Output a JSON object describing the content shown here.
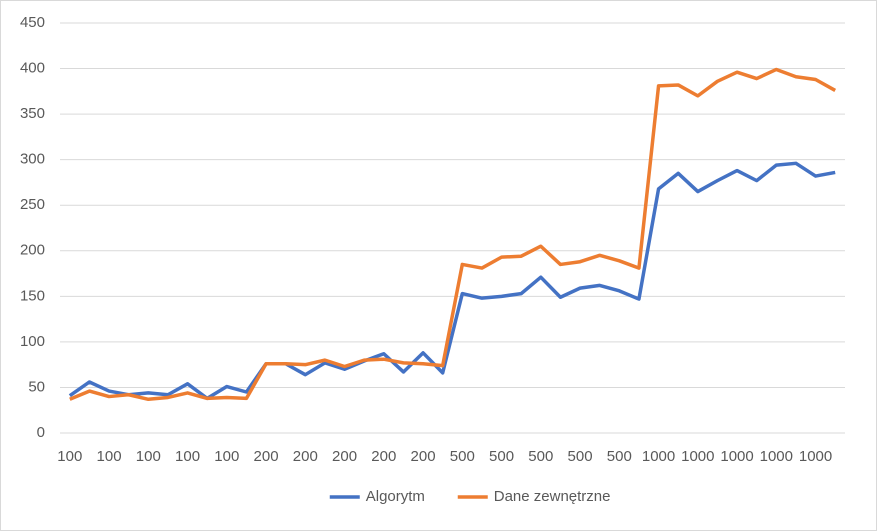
{
  "chart_data": {
    "type": "line",
    "categories": [
      "100",
      null,
      "100",
      null,
      "100",
      null,
      "100",
      null,
      "100",
      null,
      "200",
      null,
      "200",
      null,
      "200",
      null,
      "200",
      null,
      "200",
      null,
      "500",
      null,
      "500",
      null,
      "500",
      null,
      "500",
      null,
      "500",
      null,
      "1000",
      null,
      "1000",
      null,
      "1000",
      null,
      "1000",
      null,
      "1000",
      null
    ],
    "series": [
      {
        "name": "Algorytm",
        "color": "#4472c4",
        "values": [
          41,
          56,
          46,
          42,
          44,
          42,
          54,
          38,
          51,
          45,
          76,
          76,
          64,
          77,
          70,
          79,
          87,
          67,
          88,
          66,
          153,
          148,
          150,
          153,
          171,
          149,
          159,
          162,
          156,
          147,
          268,
          285,
          265,
          277,
          288,
          277,
          294,
          296,
          282,
          286
        ]
      },
      {
        "name": "Dane zewnętrzne",
        "color": "#ed7d31",
        "values": [
          37,
          46,
          40,
          42,
          37,
          39,
          44,
          38,
          39,
          38,
          76,
          76,
          75,
          80,
          73,
          80,
          81,
          77,
          76,
          74,
          185,
          181,
          193,
          194,
          205,
          185,
          188,
          195,
          189,
          181,
          381,
          382,
          370,
          386,
          396,
          389,
          399,
          391,
          388,
          376
        ]
      }
    ],
    "ylim": [
      0,
      450
    ],
    "yticks": [
      0,
      50,
      100,
      150,
      200,
      250,
      300,
      350,
      400,
      450
    ],
    "grid": true,
    "legend": "bottom"
  }
}
